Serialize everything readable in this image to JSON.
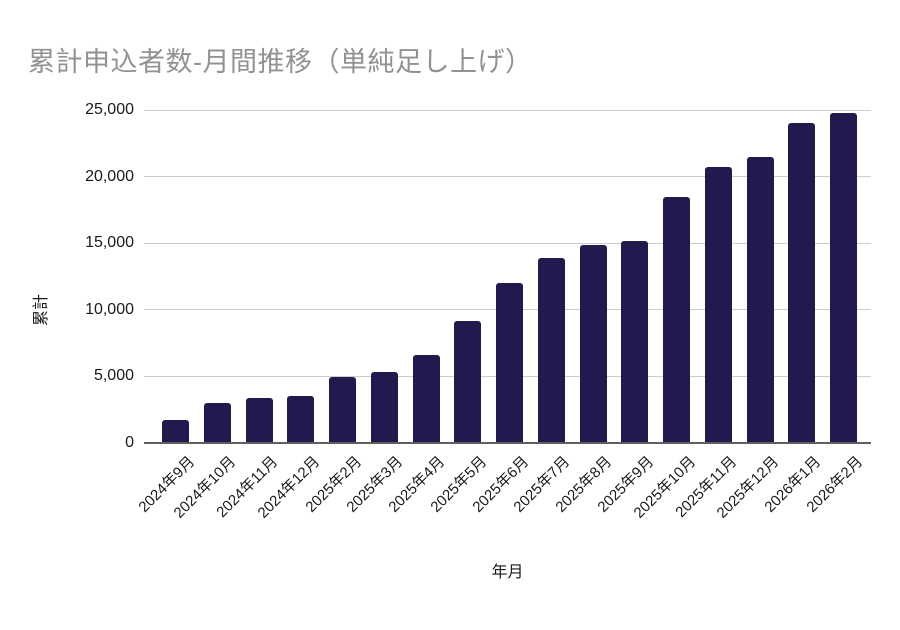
{
  "chart_data": {
    "type": "bar",
    "title": "累計申込者数-月間推移（単純足し上げ）",
    "xlabel": "年月",
    "ylabel": "累計",
    "categories": [
      "2024年9月",
      "2024年10月",
      "2024年11月",
      "2024年12月",
      "2025年2月",
      "2025年3月",
      "2025年4月",
      "2025年5月",
      "2025年6月",
      "2025年7月",
      "2025年8月",
      "2025年9月",
      "2025年10月",
      "2025年11月",
      "2025年12月",
      "2026年1月",
      "2026年2月"
    ],
    "values": [
      1700,
      3000,
      3400,
      3550,
      4950,
      5350,
      6600,
      9150,
      12050,
      13900,
      14900,
      15150,
      18450,
      20700,
      21450,
      24000,
      24800
    ],
    "ylim": [
      0,
      25000
    ],
    "y_ticks": [
      0,
      5000,
      10000,
      15000,
      20000,
      25000
    ],
    "y_tick_labels": [
      "0",
      "5,000",
      "10,000",
      "15,000",
      "20,000",
      "25,000"
    ],
    "grid": "horizontal-only",
    "legend_position": "none",
    "colors": {
      "bar": "#221a4e",
      "title": "#929292",
      "gridline": "#cccccc",
      "axis_line": "#5f5f5f",
      "tick_text": "#1a1a1a",
      "background": "#ffffff"
    }
  }
}
